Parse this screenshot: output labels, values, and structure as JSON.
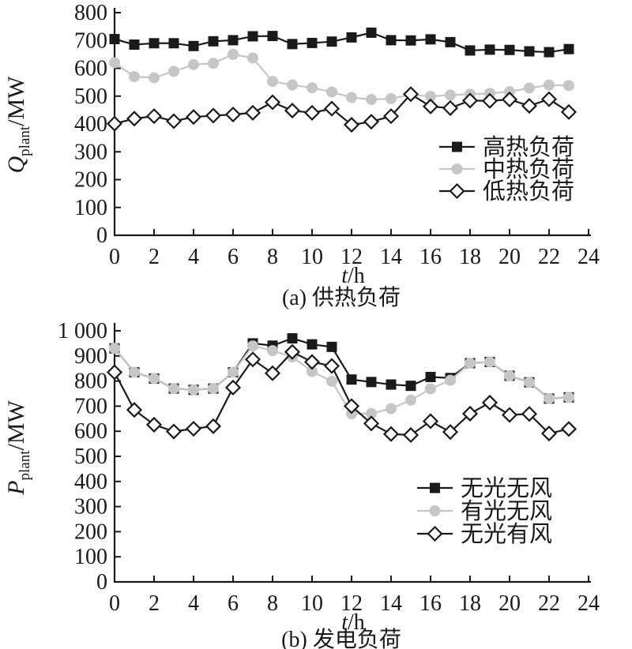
{
  "figure": {
    "background": "#ffffff",
    "series_black": "#1a1a1a",
    "series_gray": "#c6c6c6",
    "axis_color": "#1a1a1a"
  },
  "chart_data": [
    {
      "type": "line",
      "key": "heating-load",
      "title": "(a) 供热负荷",
      "xlabel_var": "t",
      "xlabel_rest": "/h",
      "ylabel_symbol": "Q",
      "ylabel_sub": "plant",
      "ylabel_unit": "/MW",
      "xlim": [
        0,
        24
      ],
      "ylim": [
        0,
        800
      ],
      "grid": false,
      "legend_position": "inside-right-middle",
      "xtick_values": [
        0,
        2,
        4,
        6,
        8,
        10,
        12,
        14,
        16,
        18,
        20,
        22,
        24
      ],
      "xtick_labels": [
        "0",
        "2",
        "4",
        "6",
        "8",
        "10",
        "12",
        "14",
        "16",
        "18",
        "20",
        "22",
        "24"
      ],
      "ytick_values": [
        0,
        100,
        200,
        300,
        400,
        500,
        600,
        700,
        800
      ],
      "ytick_labels": [
        "0",
        "100",
        "200",
        "300",
        "400",
        "500",
        "600",
        "700",
        "800"
      ],
      "x": [
        0,
        1,
        2,
        3,
        4,
        5,
        6,
        7,
        8,
        9,
        10,
        11,
        12,
        13,
        14,
        15,
        16,
        17,
        18,
        19,
        20,
        21,
        22,
        23
      ],
      "series": [
        {
          "key": "high-heat-load",
          "name": "高热负荷",
          "marker": "square",
          "marker_fill": "#1a1a1a",
          "line_color": "#1a1a1a",
          "values": [
            705,
            685,
            690,
            690,
            680,
            697,
            701,
            715,
            716,
            687,
            691,
            696,
            711,
            728,
            701,
            700,
            704,
            694,
            664,
            667,
            666,
            661,
            658,
            669
          ]
        },
        {
          "key": "mid-heat-load",
          "name": "中热负荷",
          "marker": "circle",
          "marker_fill": "#c6c6c6",
          "line_color": "#c6c6c6",
          "values": [
            620,
            570,
            566,
            589,
            613,
            618,
            650,
            637,
            553,
            540,
            530,
            515,
            495,
            488,
            491,
            505,
            499,
            504,
            507,
            510,
            516,
            529,
            540,
            538
          ]
        },
        {
          "key": "low-heat-load",
          "name": "低热负荷",
          "marker": "diamond",
          "marker_fill": "#ffffff",
          "line_color": "#1a1a1a",
          "values": [
            401,
            419,
            428,
            410,
            425,
            430,
            434,
            440,
            478,
            448,
            440,
            455,
            397,
            408,
            428,
            507,
            463,
            457,
            484,
            483,
            488,
            465,
            489,
            443
          ]
        }
      ]
    },
    {
      "type": "line",
      "key": "power-load",
      "title": "(b) 发电负荷",
      "xlabel_var": "t",
      "xlabel_rest": "/h",
      "ylabel_symbol": "P",
      "ylabel_sub": "plant",
      "ylabel_unit": "/MW",
      "xlim": [
        0,
        24
      ],
      "ylim": [
        0,
        1000
      ],
      "grid": false,
      "legend_position": "inside-right-middle",
      "xtick_values": [
        0,
        2,
        4,
        6,
        8,
        10,
        12,
        14,
        16,
        18,
        20,
        22,
        24
      ],
      "xtick_labels": [
        "0",
        "2",
        "4",
        "6",
        "8",
        "10",
        "12",
        "14",
        "16",
        "18",
        "20",
        "22",
        "24"
      ],
      "ytick_values": [
        0,
        100,
        200,
        300,
        400,
        500,
        600,
        700,
        800,
        900,
        1000
      ],
      "ytick_labels": [
        "0",
        "100",
        "200",
        "300",
        "400",
        "500",
        "600",
        "700",
        "800",
        "900",
        "1 000"
      ],
      "x": [
        0,
        1,
        2,
        3,
        4,
        5,
        6,
        7,
        8,
        9,
        10,
        11,
        12,
        13,
        14,
        15,
        16,
        17,
        18,
        19,
        20,
        21,
        22,
        23
      ],
      "series": [
        {
          "key": "no-sun-no-wind",
          "name": "无光无风",
          "marker": "square",
          "marker_fill": "#1a1a1a",
          "line_color": "#1a1a1a",
          "values": [
            930,
            835,
            810,
            770,
            765,
            770,
            835,
            950,
            941,
            970,
            946,
            936,
            806,
            796,
            786,
            781,
            816,
            812,
            871,
            876,
            821,
            795,
            730,
            735
          ]
        },
        {
          "key": "sun-no-wind",
          "name": "有光无风",
          "marker": "circle",
          "marker_fill": "#c6c6c6",
          "line_color": "#c6c6c6",
          "values": [
            930,
            835,
            810,
            770,
            765,
            770,
            835,
            940,
            921,
            896,
            838,
            799,
            669,
            671,
            690,
            724,
            769,
            803,
            871,
            876,
            821,
            795,
            730,
            735
          ]
        },
        {
          "key": "no-sun-wind",
          "name": "无光有风",
          "marker": "diamond",
          "marker_fill": "#ffffff",
          "line_color": "#1a1a1a",
          "values": [
            835,
            685,
            626,
            599,
            610,
            620,
            774,
            886,
            831,
            916,
            876,
            860,
            700,
            631,
            589,
            585,
            640,
            597,
            670,
            714,
            665,
            669,
            591,
            609
          ]
        }
      ]
    }
  ]
}
